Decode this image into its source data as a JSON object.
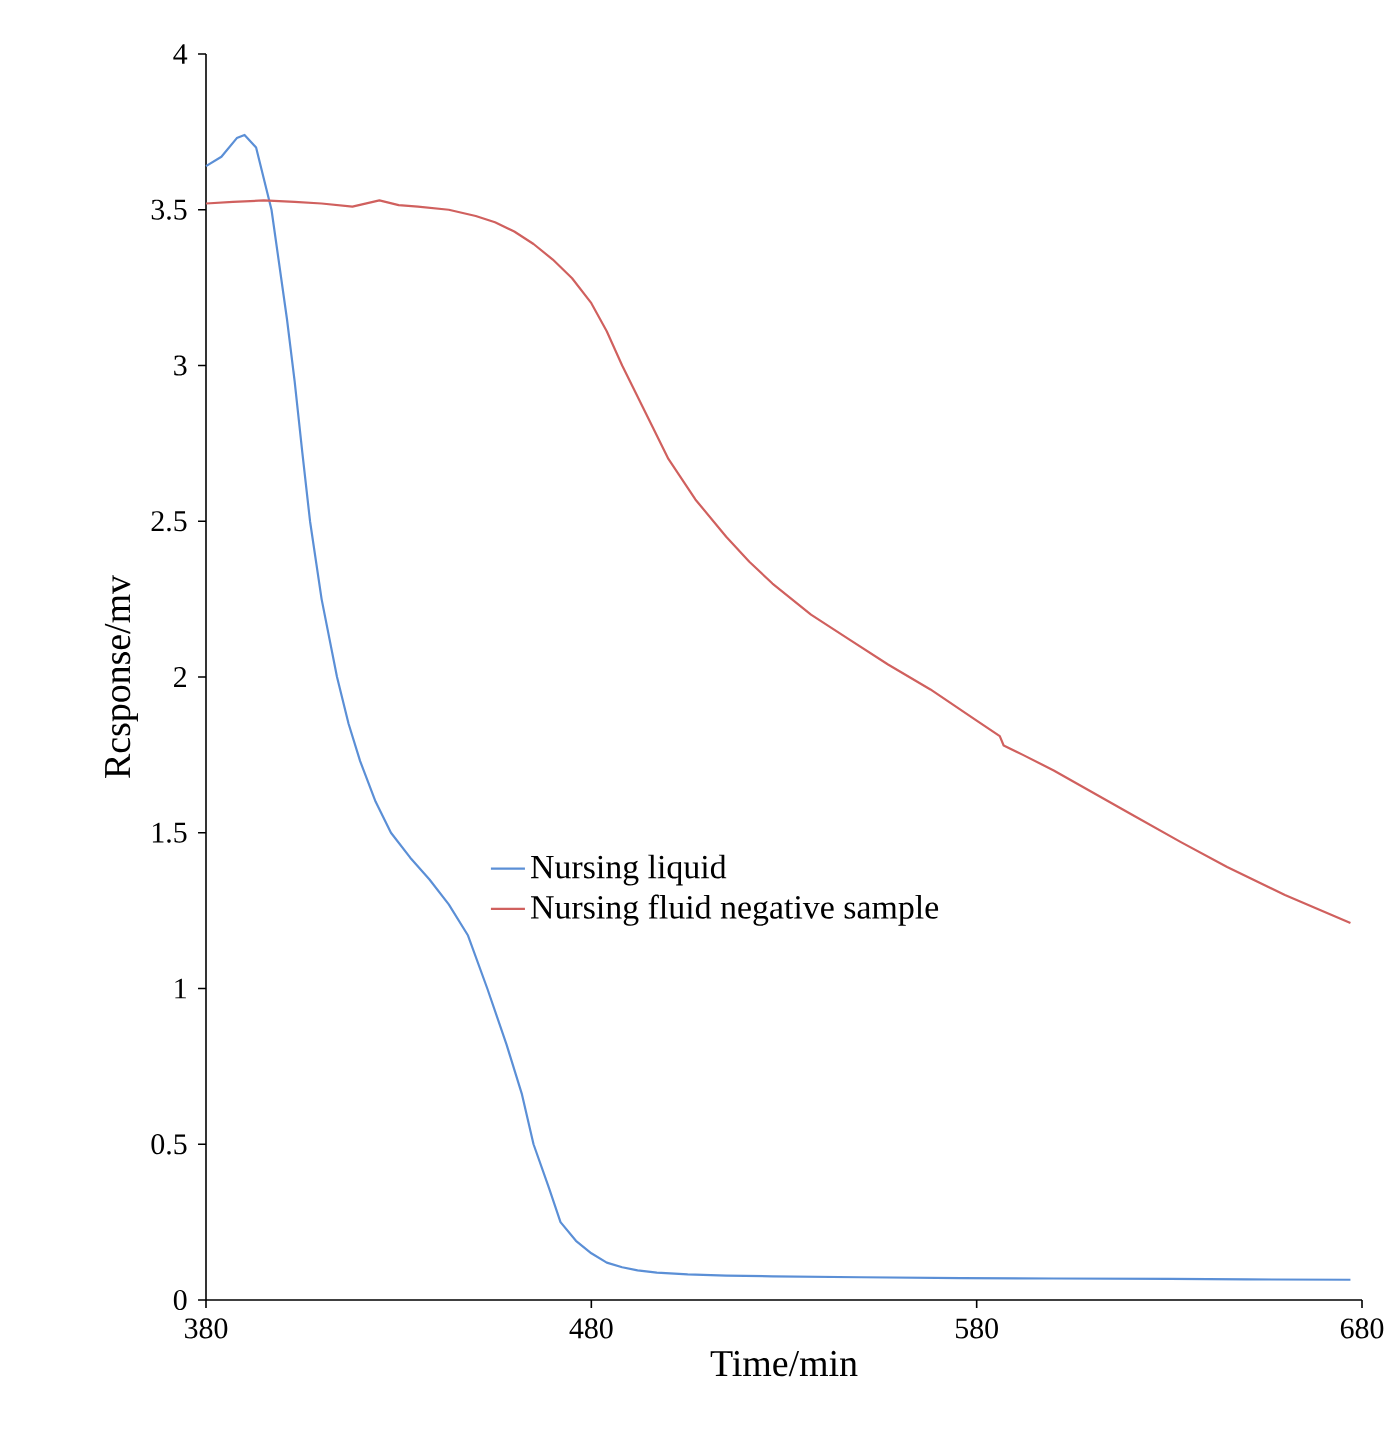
{
  "chart_data": {
    "type": "line",
    "xlabel": "Time/min",
    "ylabel": "Rcsponse/mv",
    "xlim": [
      380,
      680
    ],
    "ylim": [
      0,
      4
    ],
    "xticks": [
      380,
      480,
      580,
      680
    ],
    "yticks": [
      0,
      0.5,
      1,
      1.5,
      2,
      2.5,
      3,
      3.5,
      4
    ],
    "legend": "center",
    "grid": false,
    "series": [
      {
        "name": "Nursing liquid",
        "color": "#5b8fd6",
        "x": [
          380,
          384,
          388,
          390,
          393,
          397,
          401,
          403,
          405,
          407,
          410,
          414,
          417,
          420,
          424,
          428,
          433,
          438,
          443,
          448,
          453,
          458,
          462,
          465,
          469,
          472,
          476,
          480,
          484,
          488,
          492,
          497,
          505,
          515,
          527,
          550,
          576,
          600,
          630,
          650,
          677
        ],
        "values": [
          3.64,
          3.67,
          3.73,
          3.74,
          3.7,
          3.5,
          3.15,
          2.95,
          2.72,
          2.5,
          2.25,
          2.0,
          1.85,
          1.73,
          1.6,
          1.5,
          1.42,
          1.35,
          1.27,
          1.17,
          1.0,
          0.82,
          0.66,
          0.5,
          0.36,
          0.25,
          0.19,
          0.15,
          0.12,
          0.105,
          0.095,
          0.088,
          0.082,
          0.078,
          0.076,
          0.073,
          0.07,
          0.069,
          0.068,
          0.066,
          0.065
        ]
      },
      {
        "name": "Nursing fluid negative sample",
        "color": "#d0605e",
        "x": [
          380,
          387,
          395,
          403,
          410,
          418,
          425,
          430,
          435,
          443,
          450,
          455,
          460,
          465,
          470,
          475,
          480,
          484,
          488,
          492,
          496,
          500,
          507,
          515,
          521,
          527,
          537,
          547,
          557,
          568,
          580,
          586,
          587,
          592,
          600,
          610,
          620,
          633,
          645,
          660,
          677
        ],
        "values": [
          3.52,
          3.525,
          3.53,
          3.525,
          3.52,
          3.51,
          3.53,
          3.515,
          3.51,
          3.5,
          3.48,
          3.46,
          3.43,
          3.39,
          3.34,
          3.28,
          3.2,
          3.11,
          3.0,
          2.9,
          2.8,
          2.7,
          2.57,
          2.45,
          2.37,
          2.3,
          2.2,
          2.12,
          2.04,
          1.96,
          1.86,
          1.81,
          1.78,
          1.75,
          1.7,
          1.63,
          1.56,
          1.47,
          1.39,
          1.3,
          1.21
        ]
      }
    ]
  }
}
